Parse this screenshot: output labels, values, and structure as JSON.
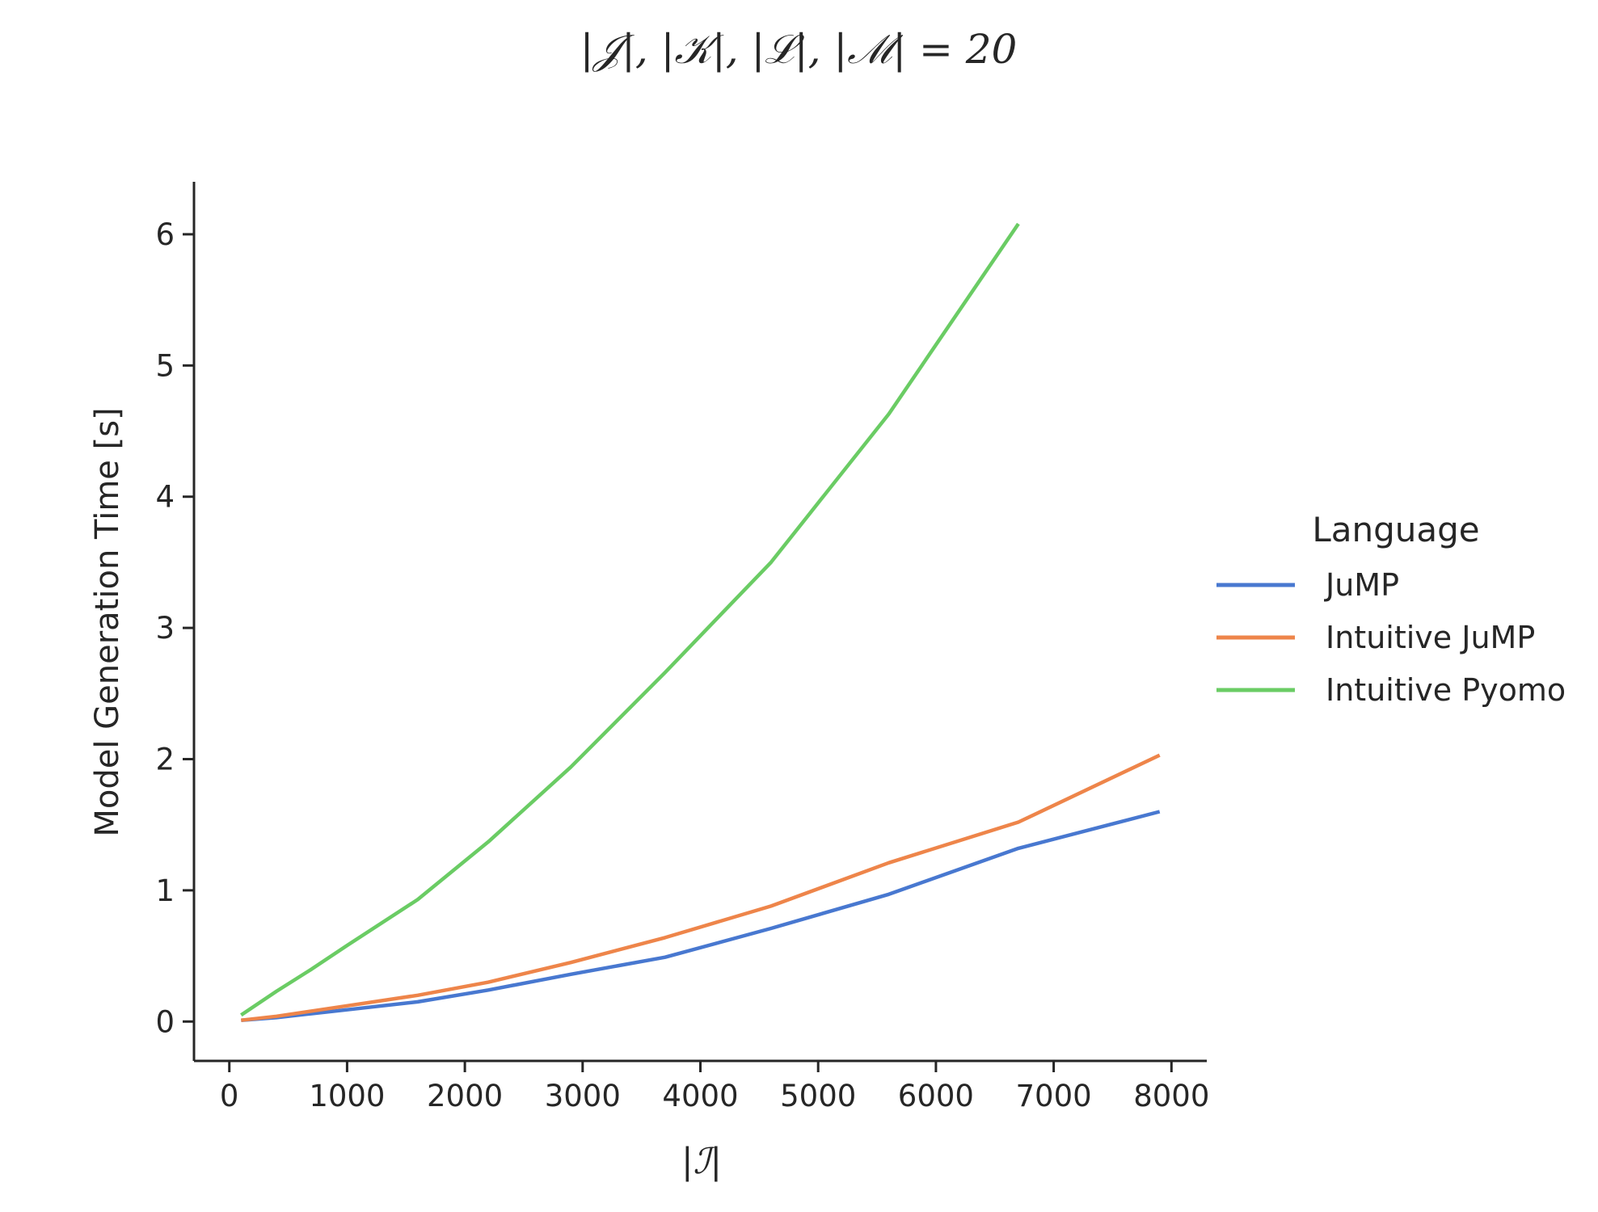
{
  "chart_data": {
    "type": "line",
    "title": "|𝒥|, |𝒦|, |ℒ|, |ℳ| = 20",
    "xlabel": "|ℐ|",
    "ylabel": "Model Generation Time [s]",
    "xlim": [
      -300,
      8300
    ],
    "ylim": [
      -0.3,
      6.4
    ],
    "xticks": [
      0,
      1000,
      2000,
      3000,
      4000,
      5000,
      6000,
      7000,
      8000
    ],
    "yticks": [
      0,
      1,
      2,
      3,
      4,
      5,
      6
    ],
    "grid": false,
    "legend": {
      "title": "Language",
      "placement": "right-outside"
    },
    "series": [
      {
        "name": "JuMP",
        "color": "#4878d0",
        "x": [
          100,
          400,
          700,
          1000,
          1600,
          2200,
          2900,
          3700,
          4600,
          5600,
          6700,
          7900
        ],
        "y": [
          0.01,
          0.03,
          0.06,
          0.09,
          0.15,
          0.24,
          0.36,
          0.49,
          0.71,
          0.97,
          1.32,
          1.6
        ]
      },
      {
        "name": "Intuitive JuMP",
        "color": "#ee854a",
        "x": [
          100,
          400,
          700,
          1000,
          1600,
          2200,
          2900,
          3700,
          4600,
          5600,
          6700,
          7900
        ],
        "y": [
          0.01,
          0.04,
          0.08,
          0.12,
          0.2,
          0.3,
          0.45,
          0.64,
          0.88,
          1.21,
          1.52,
          2.03
        ]
      },
      {
        "name": "Intuitive Pyomo",
        "color": "#6acc64",
        "x": [
          100,
          400,
          700,
          1000,
          1600,
          2200,
          2900,
          3700,
          4600,
          5600,
          6700
        ],
        "y": [
          0.05,
          0.23,
          0.4,
          0.58,
          0.93,
          1.37,
          1.94,
          2.66,
          3.5,
          4.63,
          6.08
        ]
      }
    ]
  }
}
